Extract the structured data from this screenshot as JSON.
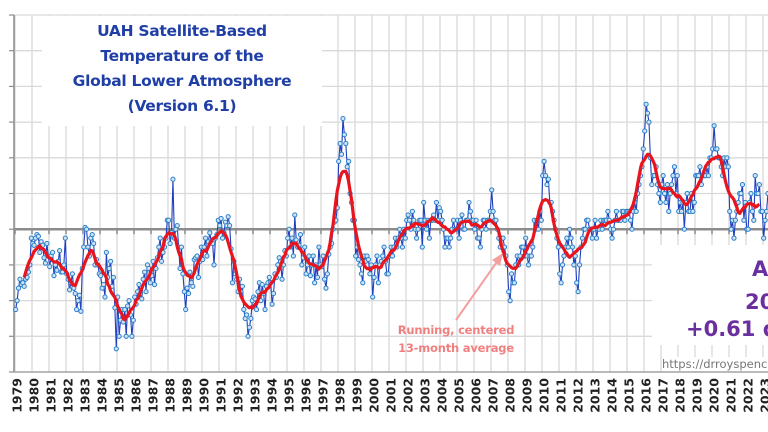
{
  "title_lines": [
    "UAH Satellite-Based",
    "Temperature of the",
    "Global Lower Atmosphere",
    "(Version 6.1)"
  ],
  "annotation": {
    "line1": "Running, centered",
    "line2": "13-month average"
  },
  "right_panel": {
    "line1": "A",
    "line2": "20",
    "line3": "+0.61 de",
    "url": "https://drroyspenc"
  },
  "colors": {
    "title": "#1f3fa6",
    "monthly_line": "#1f3fbf",
    "monthly_marker": "#2a7fc9",
    "running_avg": "#e8141e",
    "annotation": "#f08080",
    "panel_text": "#6b2fa0"
  },
  "chart_data": {
    "type": "line",
    "title": "UAH Satellite-Based Temperature of the Global Lower Atmosphere (Version 6.1)",
    "xlabel": "",
    "ylabel": "",
    "ylim": [
      -0.8,
      1.2
    ],
    "y_grid_step": 0.2,
    "grid": true,
    "x_tick_labels": [
      "1979",
      "1980",
      "1981",
      "1982",
      "1983",
      "1984",
      "1985",
      "1986",
      "1987",
      "1988",
      "1989",
      "1990",
      "1991",
      "1992",
      "1993",
      "1994",
      "1995",
      "1996",
      "1997",
      "1998",
      "1999",
      "2000",
      "2001",
      "2002",
      "2003",
      "2004",
      "2005",
      "2006",
      "2007",
      "2008",
      "2009",
      "2010",
      "2011",
      "2012",
      "2013",
      "2014",
      "2015",
      "2016",
      "2017",
      "2018",
      "2019",
      "2020",
      "2021",
      "2022",
      "2023"
    ],
    "start": "1979-01",
    "series": [
      {
        "kind": "monthly",
        "values": [
          -0.45,
          -0.4,
          -0.33,
          -0.28,
          -0.31,
          -0.3,
          -0.32,
          -0.28,
          -0.27,
          -0.24,
          -0.2,
          -0.05,
          -0.08,
          -0.09,
          -0.05,
          -0.03,
          -0.04,
          -0.13,
          -0.07,
          -0.09,
          -0.16,
          -0.19,
          -0.08,
          -0.15,
          -0.21,
          -0.15,
          -0.13,
          -0.26,
          -0.2,
          -0.23,
          -0.18,
          -0.12,
          -0.24,
          -0.24,
          -0.2,
          -0.05,
          -0.25,
          -0.28,
          -0.34,
          -0.3,
          -0.25,
          -0.33,
          -0.36,
          -0.45,
          -0.4,
          -0.37,
          -0.46,
          -0.22,
          -0.1,
          0.01,
          0.0,
          -0.1,
          -0.15,
          -0.05,
          -0.03,
          -0.08,
          -0.2,
          -0.17,
          -0.2,
          -0.25,
          -0.26,
          -0.33,
          -0.31,
          -0.38,
          -0.13,
          -0.27,
          -0.22,
          -0.18,
          -0.32,
          -0.27,
          -0.44,
          -0.67,
          -0.38,
          -0.6,
          -0.51,
          -0.45,
          -0.52,
          -0.45,
          -0.6,
          -0.43,
          -0.4,
          -0.48,
          -0.6,
          -0.51,
          -0.38,
          -0.42,
          -0.35,
          -0.31,
          -0.36,
          -0.39,
          -0.28,
          -0.24,
          -0.35,
          -0.2,
          -0.22,
          -0.3,
          -0.26,
          -0.18,
          -0.31,
          -0.22,
          -0.16,
          -0.1,
          -0.05,
          -0.18,
          -0.13,
          -0.1,
          -0.05,
          0.05,
          0.05,
          -0.08,
          -0.02,
          0.28,
          -0.05,
          0.0,
          0.02,
          -0.1,
          -0.22,
          -0.1,
          -0.25,
          -0.35,
          -0.45,
          -0.33,
          -0.36,
          -0.24,
          -0.3,
          -0.32,
          -0.17,
          -0.16,
          -0.15,
          -0.27,
          -0.18,
          -0.1,
          -0.17,
          -0.1,
          -0.05,
          -0.15,
          -0.07,
          -0.02,
          -0.07,
          -0.08,
          -0.2,
          -0.05,
          -0.03,
          0.05,
          0.02,
          0.06,
          -0.05,
          -0.02,
          0.04,
          0.02,
          0.07,
          0.02,
          -0.11,
          -0.3,
          -0.18,
          -0.25,
          -0.28,
          -0.35,
          -0.28,
          -0.35,
          -0.32,
          -0.45,
          -0.5,
          -0.48,
          -0.6,
          -0.55,
          -0.5,
          -0.4,
          -0.38,
          -0.39,
          -0.45,
          -0.35,
          -0.3,
          -0.4,
          -0.31,
          -0.36,
          -0.45,
          -0.32,
          -0.3,
          -0.27,
          -0.3,
          -0.42,
          -0.36,
          -0.25,
          -0.27,
          -0.2,
          -0.16,
          -0.18,
          -0.28,
          -0.2,
          -0.12,
          -0.15,
          -0.05,
          0.0,
          -0.1,
          -0.05,
          -0.15,
          0.08,
          -0.06,
          -0.1,
          -0.09,
          -0.03,
          -0.2,
          -0.16,
          -0.1,
          -0.25,
          -0.2,
          -0.15,
          -0.26,
          -0.2,
          -0.15,
          -0.3,
          -0.2,
          -0.27,
          -0.1,
          -0.2,
          -0.21,
          -0.15,
          -0.28,
          -0.33,
          -0.25,
          -0.14,
          -0.1,
          -0.08,
          0.0,
          0.04,
          0.05,
          0.12,
          0.38,
          0.48,
          0.42,
          0.62,
          0.53,
          0.48,
          0.35,
          0.38,
          0.2,
          0.15,
          0.05,
          0.05,
          -0.15,
          -0.1,
          -0.17,
          -0.2,
          -0.25,
          -0.3,
          -0.15,
          -0.18,
          -0.15,
          -0.17,
          -0.25,
          -0.2,
          -0.38,
          -0.27,
          -0.2,
          -0.15,
          -0.3,
          -0.2,
          -0.18,
          -0.15,
          -0.1,
          -0.18,
          -0.25,
          -0.25,
          -0.15,
          -0.1,
          -0.15,
          -0.1,
          -0.05,
          -0.1,
          -0.05,
          0.0,
          -0.05,
          -0.1,
          0.0,
          -0.05,
          0.05,
          0.08,
          0.05,
          0.0,
          0.1,
          0.05,
          0.0,
          -0.05,
          0.0,
          0.05,
          0.05,
          -0.1,
          0.15,
          0.05,
          0.0,
          0.05,
          -0.05,
          0.05,
          0.05,
          0.08,
          0.05,
          0.15,
          0.05,
          0.12,
          0.1,
          0.05,
          0.0,
          -0.1,
          -0.05,
          -0.05,
          -0.1,
          -0.05,
          0.0,
          0.05,
          0.0,
          0.0,
          0.05,
          -0.05,
          0.05,
          0.08,
          0.0,
          0.0,
          0.05,
          0.05,
          0.15,
          0.1,
          0.05,
          0.05,
          0.0,
          0.05,
          -0.05,
          -0.05,
          -0.1,
          0.0,
          0.05,
          0.05,
          0.0,
          0.05,
          0.05,
          0.1,
          0.22,
          0.1,
          0.05,
          0.05,
          0.0,
          -0.05,
          -0.1,
          -0.05,
          -0.05,
          -0.1,
          -0.15,
          -0.2,
          -0.35,
          -0.4,
          -0.25,
          -0.3,
          -0.3,
          -0.2,
          -0.15,
          -0.2,
          -0.15,
          -0.1,
          -0.1,
          -0.15,
          -0.05,
          -0.15,
          -0.2,
          -0.15,
          -0.15,
          -0.1,
          0.05,
          0.0,
          0.05,
          0.0,
          0.1,
          0.05,
          0.3,
          0.38,
          0.3,
          0.25,
          0.28,
          0.15,
          0.15,
          0.1,
          0.05,
          0.0,
          -0.05,
          -0.1,
          -0.25,
          -0.3,
          -0.2,
          -0.15,
          -0.1,
          -0.05,
          -0.1,
          0.0,
          -0.05,
          -0.1,
          -0.2,
          -0.15,
          -0.3,
          -0.35,
          -0.2,
          -0.1,
          -0.05,
          0.0,
          0.0,
          0.05,
          0.05,
          0.0,
          0.0,
          -0.05,
          0.0,
          0.05,
          -0.05,
          0.0,
          0.0,
          0.05,
          0.0,
          0.05,
          0.05,
          0.05,
          0.1,
          0.05,
          0.0,
          -0.05,
          0.0,
          0.05,
          0.1,
          0.05,
          0.05,
          0.05,
          0.1,
          0.1,
          0.05,
          0.1,
          0.1,
          0.1,
          0.05,
          0.0,
          0.1,
          0.15,
          0.1,
          0.2,
          0.25,
          0.3,
          0.35,
          0.45,
          0.55,
          0.7,
          0.65,
          0.6,
          0.4,
          0.25,
          0.3,
          0.3,
          0.35,
          0.25,
          0.2,
          0.15,
          0.25,
          0.3,
          0.2,
          0.15,
          0.25,
          0.1,
          0.2,
          0.25,
          0.3,
          0.35,
          0.2,
          0.3,
          0.1,
          0.15,
          0.1,
          0.15,
          0.0,
          0.15,
          0.2,
          0.1,
          0.1,
          0.2,
          0.1,
          0.15,
          0.3,
          0.3,
          0.3,
          0.35,
          0.25,
          0.3,
          0.3,
          0.3,
          0.35,
          0.3,
          0.4,
          0.4,
          0.45,
          0.58,
          0.45,
          0.45,
          0.4,
          0.4,
          0.35,
          0.3,
          0.4,
          0.35,
          0.4,
          0.35,
          0.1,
          0.0,
          0.05,
          -0.05,
          0.05,
          0.1,
          0.15,
          0.2,
          0.2,
          0.25,
          0.05,
          0.15,
          0.0,
          0.0,
          0.15,
          0.2,
          0.1,
          0.05,
          0.3,
          0.2,
          0.2,
          0.25,
          0.1,
          0.1,
          -0.05,
          0.05,
          0.1,
          0.2
        ]
      },
      {
        "kind": "running_13_month_centered",
        "name": "Running, centered 13-month average"
      }
    ]
  }
}
